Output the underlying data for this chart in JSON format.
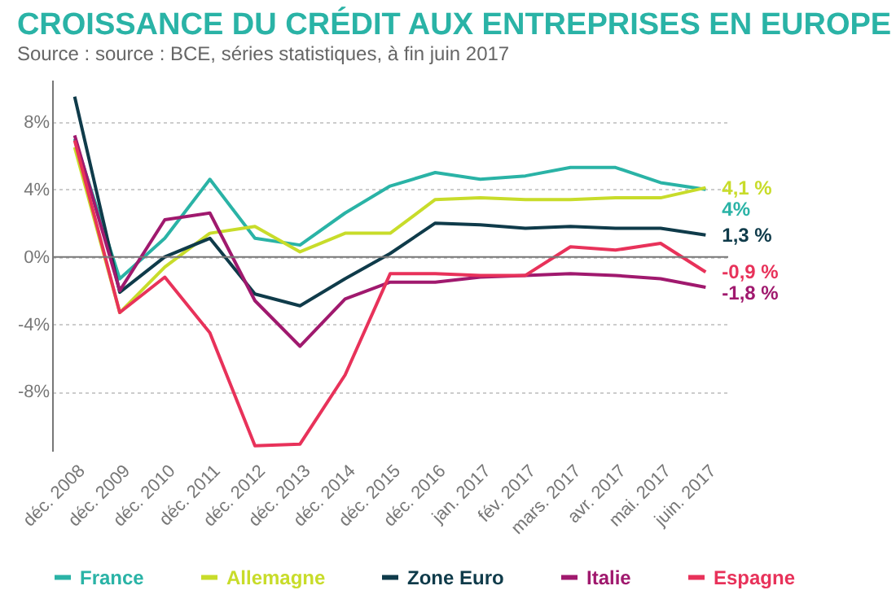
{
  "chart_data": {
    "type": "line",
    "title": "CROISSANCE DU CRÉDIT AUX ENTREPRISES EN EUROPE",
    "subtitle": "Source : source : BCE, séries statistiques, à fin juin 2017",
    "categories": [
      "déc. 2008",
      "déc. 2009",
      "déc. 2010",
      "déc. 2011",
      "déc. 2012",
      "déc. 2013",
      "déc. 2014",
      "déc. 2015",
      "déc. 2016",
      "jan. 2017",
      "fév. 2017",
      "mars. 2017",
      "avr. 2017",
      "mai. 2017",
      "juin. 2017"
    ],
    "series": [
      {
        "name": "France",
        "color": "#2ab3a6",
        "values": [
          7.0,
          -1.3,
          1.1,
          4.6,
          1.1,
          0.7,
          2.6,
          4.2,
          5.0,
          4.6,
          4.8,
          5.3,
          5.3,
          4.4,
          4.0
        ]
      },
      {
        "name": "Allemagne",
        "color": "#c8dc2a",
        "values": [
          6.5,
          -3.3,
          -0.6,
          1.4,
          1.8,
          0.3,
          1.4,
          1.4,
          3.4,
          3.5,
          3.4,
          3.4,
          3.5,
          3.5,
          4.1
        ]
      },
      {
        "name": "Zone Euro",
        "color": "#0f3b4a",
        "values": [
          9.5,
          -2.1,
          0.0,
          1.1,
          -2.2,
          -2.9,
          -1.3,
          0.2,
          2.0,
          1.9,
          1.7,
          1.8,
          1.7,
          1.7,
          1.3
        ]
      },
      {
        "name": "Italie",
        "color": "#a0196e",
        "values": [
          7.2,
          -2.0,
          2.2,
          2.6,
          -2.6,
          -5.3,
          -2.5,
          -1.5,
          -1.5,
          -1.2,
          -1.1,
          -1.0,
          -1.1,
          -1.3,
          -1.8
        ]
      },
      {
        "name": "Espagne",
        "color": "#e8325a",
        "values": [
          6.9,
          -3.3,
          -1.2,
          -4.5,
          -11.2,
          -11.1,
          -7.0,
          -1.0,
          -1.0,
          -1.1,
          -1.1,
          0.6,
          0.4,
          0.8,
          -0.9
        ]
      }
    ],
    "ylim": [
      -11.5,
      10.5
    ],
    "yticks": [
      {
        "value": -8,
        "label": "-8%"
      },
      {
        "value": -4,
        "label": "-4%"
      },
      {
        "value": 0,
        "label": "0%"
      },
      {
        "value": 4,
        "label": "4%"
      },
      {
        "value": 8,
        "label": "8%"
      }
    ],
    "grid": "y",
    "ref_lines": [
      {
        "axis": "y",
        "value": 0
      }
    ],
    "legend": "bottom",
    "annotations": [
      "4,1 %",
      "4%",
      "1,3 %",
      "-0,9 %",
      "-1,8 %"
    ]
  }
}
